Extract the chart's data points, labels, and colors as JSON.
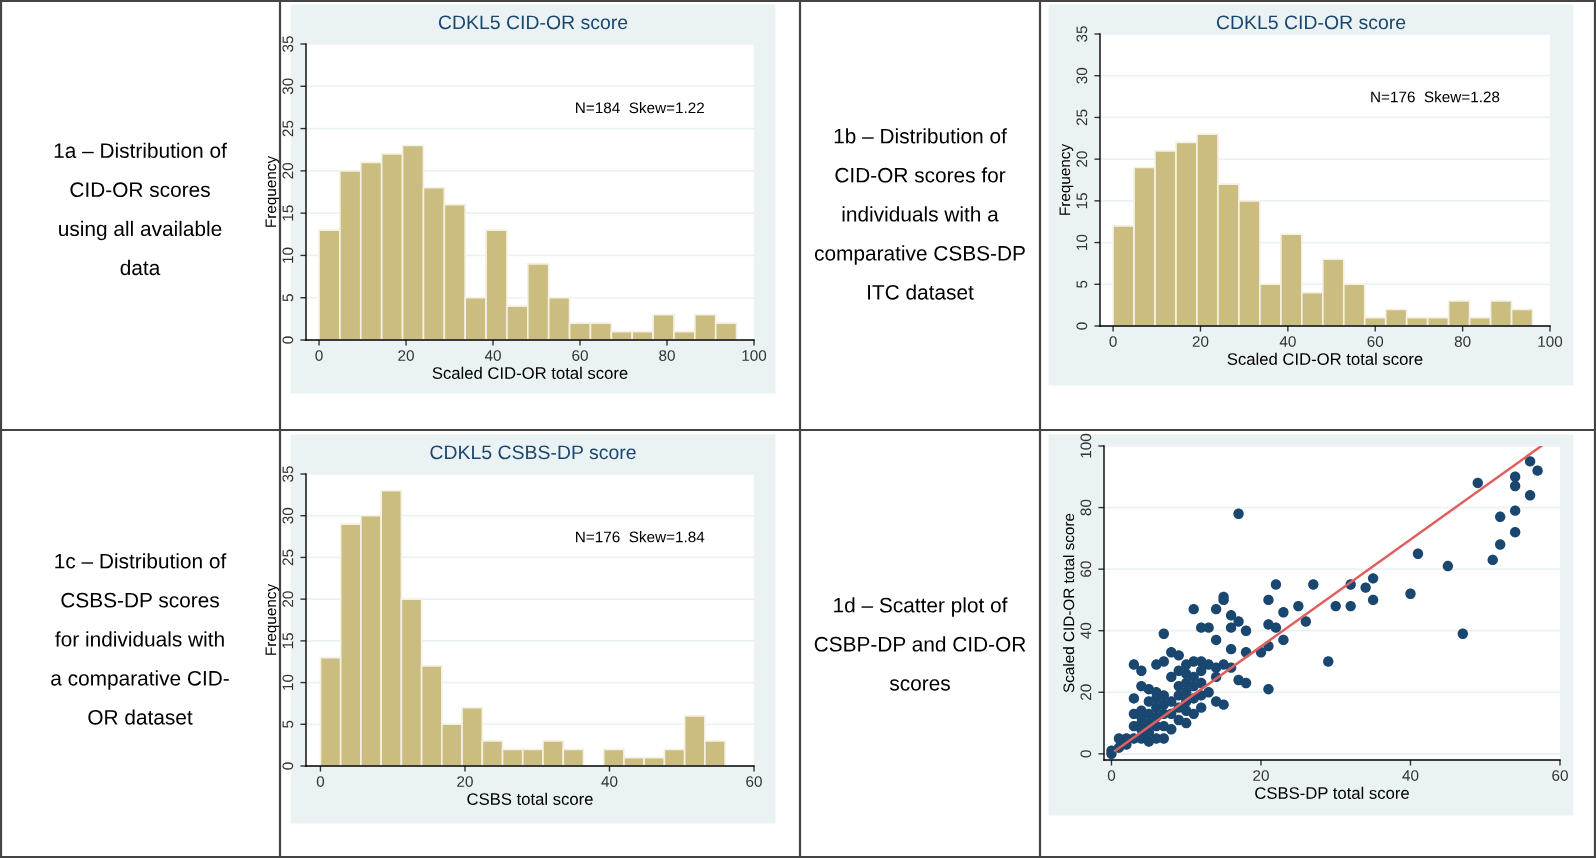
{
  "chart_data": [
    {
      "type": "histogram",
      "title": "CDKL5 CID-OR score",
      "xlabel": "Scaled CID-OR total score",
      "ylabel": "Frequency",
      "color": "#cbbd80",
      "bins": [
        0,
        4.8,
        9.6,
        14.4,
        19.2,
        24,
        28.8,
        33.6,
        38.4,
        43.2,
        48,
        52.8,
        57.6,
        62.4,
        67.2,
        72,
        76.8,
        81.6,
        86.4,
        91.2,
        96
      ],
      "values": [
        13,
        20,
        21,
        22,
        23,
        18,
        16,
        5,
        13,
        4,
        9,
        5,
        2,
        2,
        1,
        1,
        3,
        1,
        3,
        2
      ],
      "xlim": [
        -3,
        100
      ],
      "xticks": [
        0,
        20,
        40,
        60,
        80,
        100
      ],
      "ylim": [
        0,
        35
      ],
      "yticks": [
        0,
        5,
        10,
        15,
        20,
        25,
        30,
        35
      ],
      "grid": "y",
      "annotations": [
        "N=184  Skew=1.22",
        "1a – Distribution of\nCID-OR scores\nusing all available\ndata"
      ]
    },
    {
      "type": "histogram",
      "title": "CDKL5 CID-OR score",
      "xlabel": "Scaled CID-OR total score",
      "ylabel": "Frequency",
      "color": "#cbbd80",
      "bins": [
        0,
        4.8,
        9.6,
        14.4,
        19.2,
        24,
        28.8,
        33.6,
        38.4,
        43.2,
        48,
        52.8,
        57.6,
        62.4,
        67.2,
        72,
        76.8,
        81.6,
        86.4,
        91.2,
        96
      ],
      "values": [
        12,
        19,
        21,
        22,
        23,
        17,
        15,
        5,
        11,
        4,
        8,
        5,
        1,
        2,
        1,
        1,
        3,
        1,
        3,
        2
      ],
      "xlim": [
        -3,
        100
      ],
      "xticks": [
        0,
        20,
        40,
        60,
        80,
        100
      ],
      "ylim": [
        0,
        35
      ],
      "yticks": [
        0,
        5,
        10,
        15,
        20,
        25,
        30,
        35
      ],
      "grid": "y",
      "annotations": [
        "N=176  Skew=1.28",
        "1b – Distribution of\nCID-OR scores for\nindividuals with a\ncomparative CSBS-DP\nITC dataset"
      ]
    },
    {
      "type": "histogram",
      "title": "CDKL5 CSBS-DP score",
      "xlabel": "CSBS total score",
      "ylabel": "Frequency",
      "color": "#cbbd80",
      "bins": [
        0,
        2.8,
        5.6,
        8.4,
        11.2,
        14,
        16.8,
        19.6,
        22.4,
        25.2,
        28,
        30.8,
        33.6,
        36.4,
        39.2,
        42,
        44.8,
        47.6,
        50.4,
        53.2,
        56
      ],
      "values": [
        13,
        29,
        30,
        33,
        20,
        12,
        5,
        7,
        3,
        2,
        2,
        3,
        2,
        0,
        2,
        1,
        1,
        2,
        6,
        3
      ],
      "xlim": [
        -2,
        60
      ],
      "xticks": [
        0,
        20,
        40,
        60
      ],
      "ylim": [
        0,
        35
      ],
      "yticks": [
        0,
        5,
        10,
        15,
        20,
        25,
        30,
        35
      ],
      "grid": "y",
      "annotations": [
        "N=176  Skew=1.84",
        "1c – Distribution of\nCSBS-DP scores\nfor individuals with\na comparative CID-\nOR dataset"
      ]
    },
    {
      "type": "scatter",
      "xlabel": "CSBS-DP total score",
      "ylabel": "Scaled CID-OR total score",
      "xlim": [
        -1,
        60
      ],
      "xticks": [
        0,
        20,
        40,
        60
      ],
      "ylim": [
        -2,
        100
      ],
      "yticks": [
        0,
        20,
        40,
        60,
        80,
        100
      ],
      "grid": "y",
      "marker": "circle",
      "series": [
        {
          "type": "scatter",
          "color": "#1a476f",
          "x": [
            0,
            0,
            1,
            1,
            2,
            2,
            3,
            3,
            3,
            3,
            3,
            4,
            4,
            4,
            4,
            4,
            4,
            4,
            5,
            5,
            5,
            5,
            5,
            5,
            6,
            6,
            6,
            6,
            6,
            6,
            6,
            7,
            7,
            7,
            7,
            7,
            7,
            7,
            8,
            8,
            8,
            8,
            8,
            9,
            9,
            9,
            9,
            9,
            9,
            10,
            10,
            10,
            10,
            10,
            10,
            10,
            11,
            11,
            11,
            11,
            11,
            11,
            12,
            12,
            12,
            12,
            12,
            12,
            13,
            13,
            13,
            14,
            14,
            14,
            14,
            14,
            15,
            15,
            15,
            15,
            16,
            16,
            16,
            16,
            17,
            17,
            17,
            18,
            18,
            18,
            20,
            21,
            21,
            21,
            21,
            22,
            22,
            23,
            23,
            25,
            26,
            27,
            29,
            30,
            32,
            32,
            34,
            35,
            35,
            40,
            41,
            45,
            47,
            49,
            51,
            52,
            52,
            54,
            54,
            54,
            54,
            56,
            56,
            57
          ],
          "values": [
            0,
            1,
            2,
            5,
            5,
            3,
            5,
            9,
            13,
            18,
            29,
            5,
            8,
            10,
            12,
            14,
            22,
            27,
            4,
            7,
            10,
            13,
            17,
            21,
            5,
            9,
            12,
            15,
            18,
            20,
            29,
            5,
            9,
            13,
            16,
            19,
            30,
            39,
            8,
            13,
            17,
            25,
            33,
            11,
            15,
            19,
            22,
            27,
            32,
            10,
            14,
            17,
            20,
            23,
            26,
            29,
            13,
            18,
            22,
            25,
            30,
            47,
            15,
            19,
            23,
            27,
            30,
            41,
            20,
            29,
            41,
            17,
            25,
            28,
            37,
            47,
            16,
            29,
            50,
            51,
            28,
            34,
            41,
            45,
            24,
            43,
            78,
            23,
            33,
            40,
            33,
            21,
            35,
            42,
            50,
            41,
            55,
            37,
            46,
            48,
            43,
            55,
            30,
            48,
            48,
            55,
            54,
            50,
            57,
            52,
            65,
            61,
            39,
            88,
            63,
            68,
            77,
            72,
            79,
            87,
            90,
            84,
            95,
            92
          ]
        },
        {
          "type": "line",
          "color": "#e06060",
          "marker": "none",
          "x": [
            0.5,
            57.5
          ],
          "values": [
            1,
            100
          ]
        }
      ],
      "annotations": [
        "1d – Scatter plot of\nCSBP-DP and CID-OR\nscores"
      ]
    }
  ]
}
